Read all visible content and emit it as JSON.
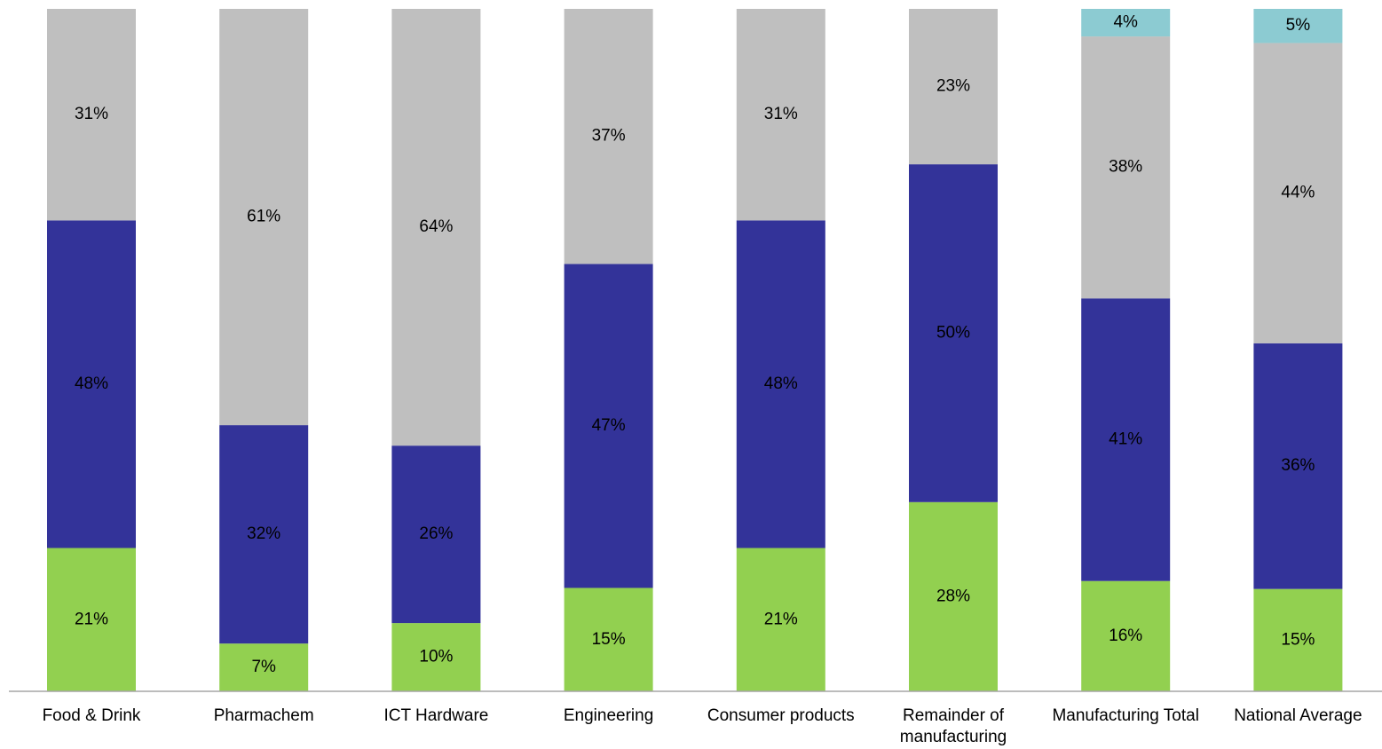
{
  "chart_data": {
    "type": "bar",
    "stacked": true,
    "orientation": "vertical",
    "categories": [
      [
        "Food & Drink"
      ],
      [
        "Pharmachem"
      ],
      [
        "ICT Hardware"
      ],
      [
        "Engineering"
      ],
      [
        "Consumer products"
      ],
      [
        "Remainder of",
        "manufacturing"
      ],
      [
        "Manufacturing Total"
      ],
      [
        "National Average"
      ]
    ],
    "series": [
      {
        "values": [
          21,
          7,
          10,
          15,
          21,
          28,
          16,
          15
        ],
        "color": "#92d050"
      },
      {
        "values": [
          48,
          32,
          26,
          47,
          48,
          50,
          41,
          36
        ],
        "color": "#333399"
      },
      {
        "values": [
          31,
          61,
          64,
          37,
          31,
          23,
          38,
          44
        ],
        "color": "#bfbfbf"
      },
      {
        "values": [
          0,
          0,
          0,
          0,
          0,
          0,
          4,
          5
        ],
        "color": "#8ccbd2"
      }
    ],
    "data_labels": [
      [
        "21%",
        "7%",
        "10%",
        "15%",
        "21%",
        "28%",
        "16%",
        "15%"
      ],
      [
        "48%",
        "32%",
        "26%",
        "47%",
        "48%",
        "50%",
        "41%",
        "36%"
      ],
      [
        "31%",
        "61%",
        "64%",
        "37%",
        "31%",
        "23%",
        "38%",
        "44%"
      ],
      [
        "",
        "",
        "",
        "",
        "",
        "",
        "4%",
        "5%"
      ]
    ],
    "ylim": [
      0,
      100
    ],
    "unit": "%",
    "grid": false,
    "legend": "none",
    "axis_color": "#a6a6a6"
  }
}
